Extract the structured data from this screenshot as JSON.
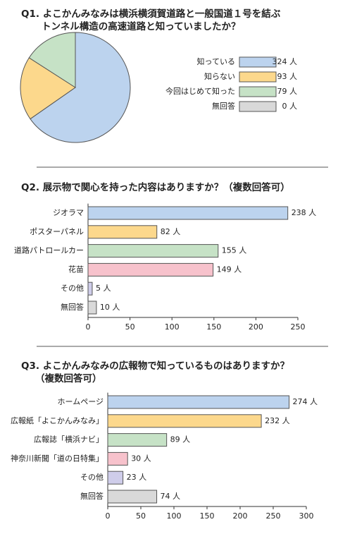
{
  "chart_data": [
    {
      "type": "pie",
      "title": [
        "Q1. よこかんみなみは横浜横須賀道路と一般国道１号を結ぶ",
        "トンネル構造の高速道路と知っていましたか？"
      ],
      "categories": [
        "知っている",
        "知らない",
        "今回はじめて知った",
        "無回答"
      ],
      "values": [
        324,
        93,
        79,
        0
      ],
      "value_labels": [
        "324 人",
        "93 人",
        "79 人",
        "0 人"
      ],
      "colors": [
        "#bcd3ee",
        "#fcd88c",
        "#c6e2c6",
        "#d9d9d9"
      ]
    },
    {
      "type": "bar",
      "title": [
        "Q2. 展示物で関心を持った内容はありますか？（複数回答可）"
      ],
      "categories": [
        "ジオラマ",
        "ポスターパネル",
        "道路パトロールカー",
        "花苗",
        "その他",
        "無回答"
      ],
      "values": [
        238,
        82,
        155,
        149,
        5,
        10
      ],
      "value_labels": [
        "238 人",
        "82 人",
        "155 人",
        "149 人",
        "5 人",
        "10 人"
      ],
      "colors": [
        "#bcd3ee",
        "#fcd88c",
        "#c6e2c6",
        "#f7c2cc",
        "#cfcdea",
        "#d9d9d9"
      ],
      "xlim": [
        0,
        250
      ],
      "xticks": [
        0,
        50,
        100,
        150,
        200,
        250
      ]
    },
    {
      "type": "bar",
      "title": [
        "Q3. よこかんみなみの広報物で知っているものはありますか？",
        "（複数回答可）"
      ],
      "categories": [
        "ホームページ",
        "広報紙「よこかんみなみ」",
        "広報誌「横浜ナビ」",
        "神奈川新聞「道の日特集」",
        "その他",
        "無回答"
      ],
      "values": [
        274,
        232,
        89,
        30,
        23,
        74
      ],
      "value_labels": [
        "274 人",
        "232 人",
        "89 人",
        "30 人",
        "23 人",
        "74 人"
      ],
      "colors": [
        "#bcd3ee",
        "#fcd88c",
        "#c6e2c6",
        "#f7c2cc",
        "#cfcdea",
        "#d9d9d9"
      ],
      "xlim": [
        0,
        300
      ],
      "xticks": [
        0,
        50,
        100,
        150,
        200,
        250,
        300
      ]
    }
  ]
}
